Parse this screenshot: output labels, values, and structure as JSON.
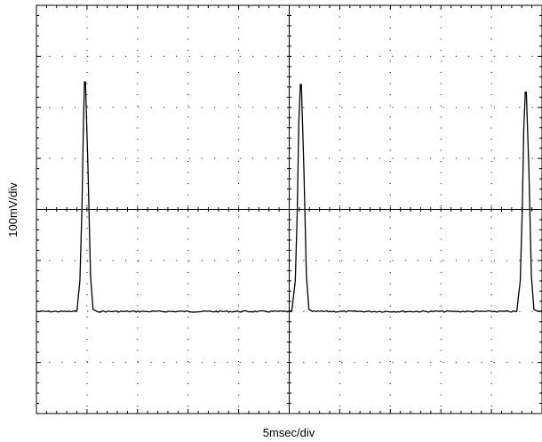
{
  "chart_data": {
    "type": "line",
    "xlabel": "5msec/div",
    "ylabel": "100mV/div",
    "x_unit": "div",
    "y_unit": "div",
    "xlim": [
      0,
      10
    ],
    "ylim": [
      -4,
      4
    ],
    "grid": true,
    "major_divisions": {
      "x": 10,
      "y": 8
    },
    "minor_ticks_per_div": 5,
    "baseline": -2.0,
    "series": [
      {
        "values": [
          [
            0.0,
            -2.0
          ],
          [
            0.8,
            -2.0
          ],
          [
            0.86,
            -1.4
          ],
          [
            0.9,
            0.0
          ],
          [
            0.93,
            1.7
          ],
          [
            0.95,
            2.5
          ],
          [
            0.97,
            2.5
          ],
          [
            1.02,
            0.8
          ],
          [
            1.07,
            -1.3
          ],
          [
            1.12,
            -1.96
          ],
          [
            1.2,
            -2.0
          ],
          [
            5.05,
            -2.0
          ],
          [
            5.12,
            -1.4
          ],
          [
            5.16,
            0.0
          ],
          [
            5.19,
            1.7
          ],
          [
            5.22,
            2.45
          ],
          [
            5.24,
            2.45
          ],
          [
            5.29,
            0.8
          ],
          [
            5.34,
            -1.3
          ],
          [
            5.39,
            -1.96
          ],
          [
            5.46,
            -2.0
          ],
          [
            9.5,
            -2.0
          ],
          [
            9.57,
            -1.4
          ],
          [
            9.61,
            0.0
          ],
          [
            9.64,
            1.6
          ],
          [
            9.67,
            2.3
          ],
          [
            9.69,
            2.3
          ],
          [
            9.74,
            0.8
          ],
          [
            9.79,
            -1.3
          ],
          [
            9.84,
            -1.96
          ],
          [
            9.92,
            -2.0
          ],
          [
            10.0,
            -2.0
          ]
        ]
      }
    ]
  }
}
